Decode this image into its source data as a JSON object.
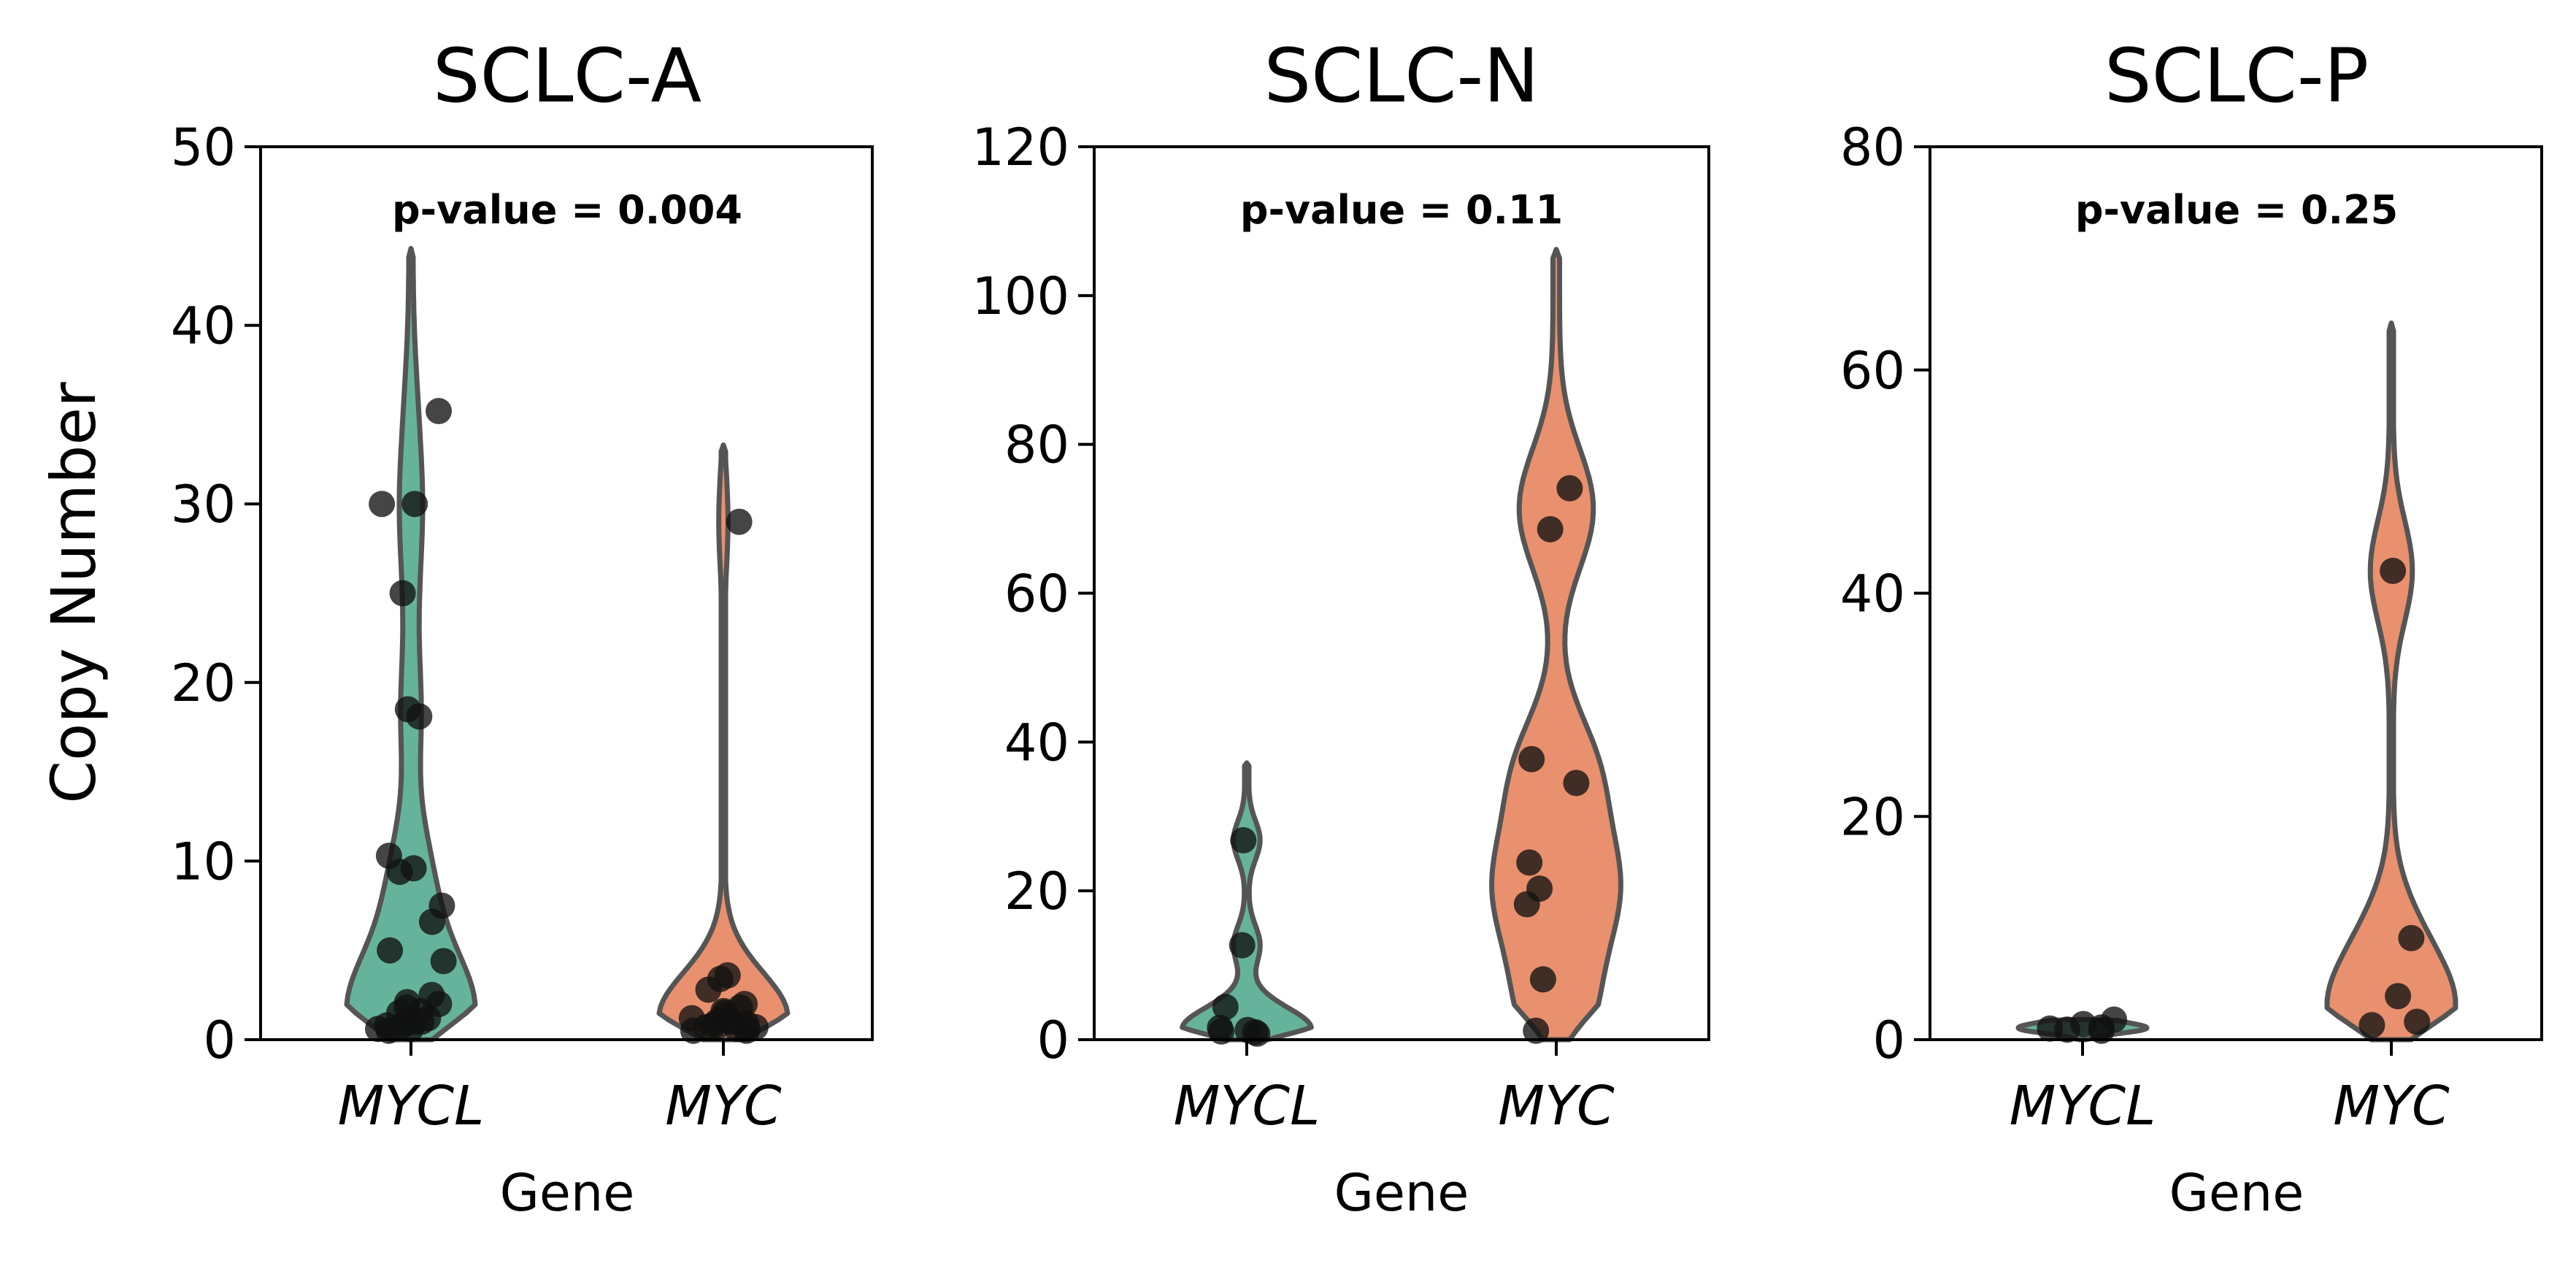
{
  "figure": {
    "ylabel": "Copy Number"
  },
  "colors": {
    "MYCL": "#66b39b",
    "MYC": "#e9906e",
    "outline": "#555555",
    "point": "#111111"
  },
  "chart_data": [
    {
      "type": "violin",
      "title": "SCLC-A",
      "xlabel": "Gene",
      "ylabel": "Copy Number",
      "pvalue_text": "p-value = 0.004",
      "categories": [
        "MYCL",
        "MYC"
      ],
      "ylim": [
        0,
        50
      ],
      "yticks": [
        0,
        10,
        20,
        30,
        40,
        50
      ],
      "violin_max": [
        44.3,
        33.3
      ],
      "points": [
        [
          35.2,
          30.0,
          30.0,
          25.0,
          18.5,
          18.1,
          10.3,
          9.4,
          9.6,
          7.5,
          6.6,
          5.0,
          4.4,
          2.5,
          2.1,
          2.0,
          1.8,
          1.6,
          1.5,
          1.2,
          1.0,
          1.0,
          0.9,
          0.8,
          0.7,
          0.6,
          0.6,
          0.5
        ],
        [
          29.0,
          3.6,
          3.4,
          2.8,
          2.0,
          1.8,
          1.6,
          1.5,
          1.3,
          1.2,
          1.1,
          1.0,
          1.0,
          0.9,
          0.8,
          0.8,
          0.7,
          0.7,
          0.6,
          0.6,
          0.5,
          0.5
        ]
      ]
    },
    {
      "type": "violin",
      "title": "SCLC-N",
      "xlabel": "Gene",
      "ylabel": "",
      "pvalue_text": "p-value = 0.11",
      "categories": [
        "MYCL",
        "MYC"
      ],
      "ylim": [
        0,
        120
      ],
      "yticks": [
        0,
        20,
        40,
        60,
        80,
        100,
        120
      ],
      "violin_max": [
        37.2,
        106.2
      ],
      "points": [
        [
          26.8,
          12.7,
          4.4,
          1.6,
          1.3,
          1.1,
          1.0,
          0.8
        ],
        [
          74.1,
          68.6,
          37.7,
          34.5,
          23.8,
          20.3,
          18.2,
          8.1,
          1.2
        ]
      ]
    },
    {
      "type": "violin",
      "title": "SCLC-P",
      "xlabel": "Gene",
      "ylabel": "",
      "pvalue_text": "p-value = 0.25",
      "categories": [
        "MYCL",
        "MYC"
      ],
      "ylim": [
        0,
        80
      ],
      "yticks": [
        0,
        20,
        40,
        60,
        80
      ],
      "violin_max": [
        1.8,
        64.2
      ],
      "points": [
        [
          1.8,
          1.4,
          1.1,
          1.0,
          0.9,
          0.8
        ],
        [
          42.0,
          9.1,
          3.9,
          1.6,
          1.3
        ]
      ]
    }
  ]
}
